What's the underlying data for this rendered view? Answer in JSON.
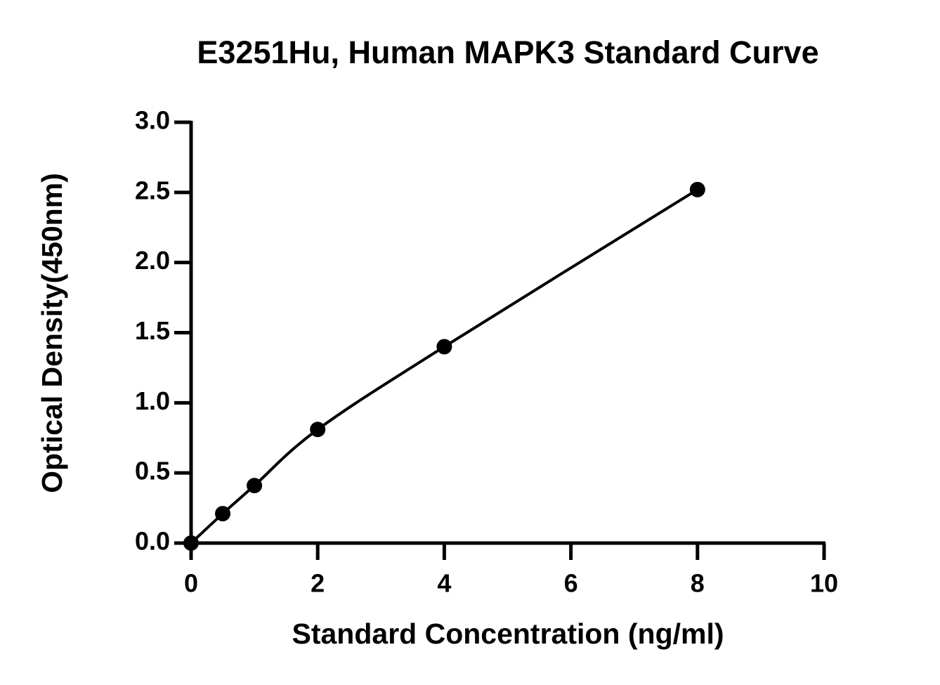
{
  "chart_data": {
    "type": "scatter",
    "title": "E3251Hu, Human MAPK3 Standard Curve",
    "x_label": "Standard Concentration (ng/ml)",
    "y_label": "Optical Density(450nm)",
    "x": [
      0,
      0.5,
      1,
      2,
      4,
      8
    ],
    "values": [
      0,
      0.21,
      0.41,
      0.81,
      1.4,
      2.52
    ],
    "color": "#000000",
    "xlim": [
      0,
      10
    ],
    "xticks": [
      0,
      2,
      4,
      6,
      8,
      10
    ],
    "ylim": [
      0,
      3
    ],
    "yticks": [
      {
        "value": 0,
        "label": "0.0"
      },
      {
        "value": 0.5,
        "label": "0.5"
      },
      {
        "value": 1,
        "label": "1.0"
      },
      {
        "value": 1.5,
        "label": "1.5"
      },
      {
        "value": 2,
        "label": "2.0"
      },
      {
        "value": 2.5,
        "label": "2.5"
      },
      {
        "value": 3,
        "label": "3.0"
      }
    ]
  }
}
